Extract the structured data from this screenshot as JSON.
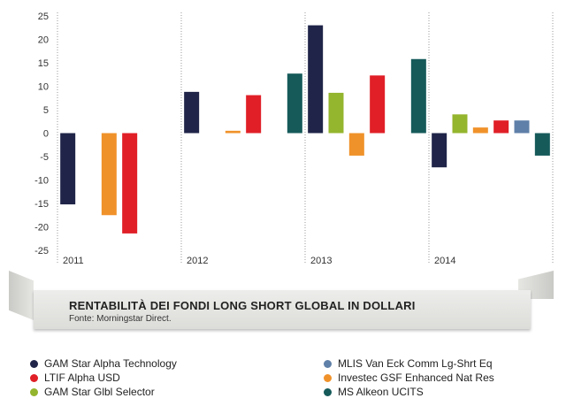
{
  "chart_data": {
    "type": "bar",
    "categories": [
      "2011",
      "2012",
      "2013",
      "2014"
    ],
    "yticks": [
      "25",
      "20",
      "15",
      "10",
      "5",
      "0",
      "-5",
      "-10",
      "-15",
      "-20",
      "-25"
    ],
    "ylim": [
      -25,
      25
    ],
    "grid": "vertical-dotted",
    "series": [
      {
        "name": "GAM Star Alpha Technology",
        "color": "#1f2448",
        "values": [
          -15.2,
          8.8,
          23.0,
          -7.3
        ]
      },
      {
        "name": "GAM Star Glbl Selector",
        "color": "#94b52e",
        "values": [
          null,
          null,
          8.6,
          4.0
        ]
      },
      {
        "name": "Investec GSF Enhanced Nat Res",
        "color": "#f0922a",
        "values": [
          -17.5,
          0.5,
          -4.8,
          1.2
        ]
      },
      {
        "name": "LTIF Alpha USD",
        "color": "#e01f27",
        "values": [
          -21.4,
          8.1,
          12.3,
          2.7
        ]
      },
      {
        "name": "MLIS Van Eck Comm Lg-Shrt Eq",
        "color": "#5f80a8",
        "values": [
          null,
          null,
          null,
          2.7
        ]
      },
      {
        "name": "MS Alkeon UCITS",
        "color": "#165a5a",
        "values": [
          null,
          12.7,
          15.8,
          -4.8
        ]
      }
    ],
    "title": "RENTABILITÀ DEI FONDI LONG SHORT GLOBAL IN DOLLARI",
    "subtitle": "Fonte: Morningstar Direct."
  },
  "legend": [
    {
      "label": "GAM Star Alpha Technology",
      "color": "#1f2448"
    },
    {
      "label": "LTIF Alpha USD",
      "color": "#e01f27"
    },
    {
      "label": "GAM Star Glbl Selector",
      "color": "#94b52e"
    },
    {
      "label": "MLIS Van Eck Comm Lg-Shrt Eq",
      "color": "#5f80a8"
    },
    {
      "label": "Investec GSF Enhanced Nat Res",
      "color": "#f0922a"
    },
    {
      "label": "MS Alkeon UCITS",
      "color": "#165a5a"
    }
  ]
}
